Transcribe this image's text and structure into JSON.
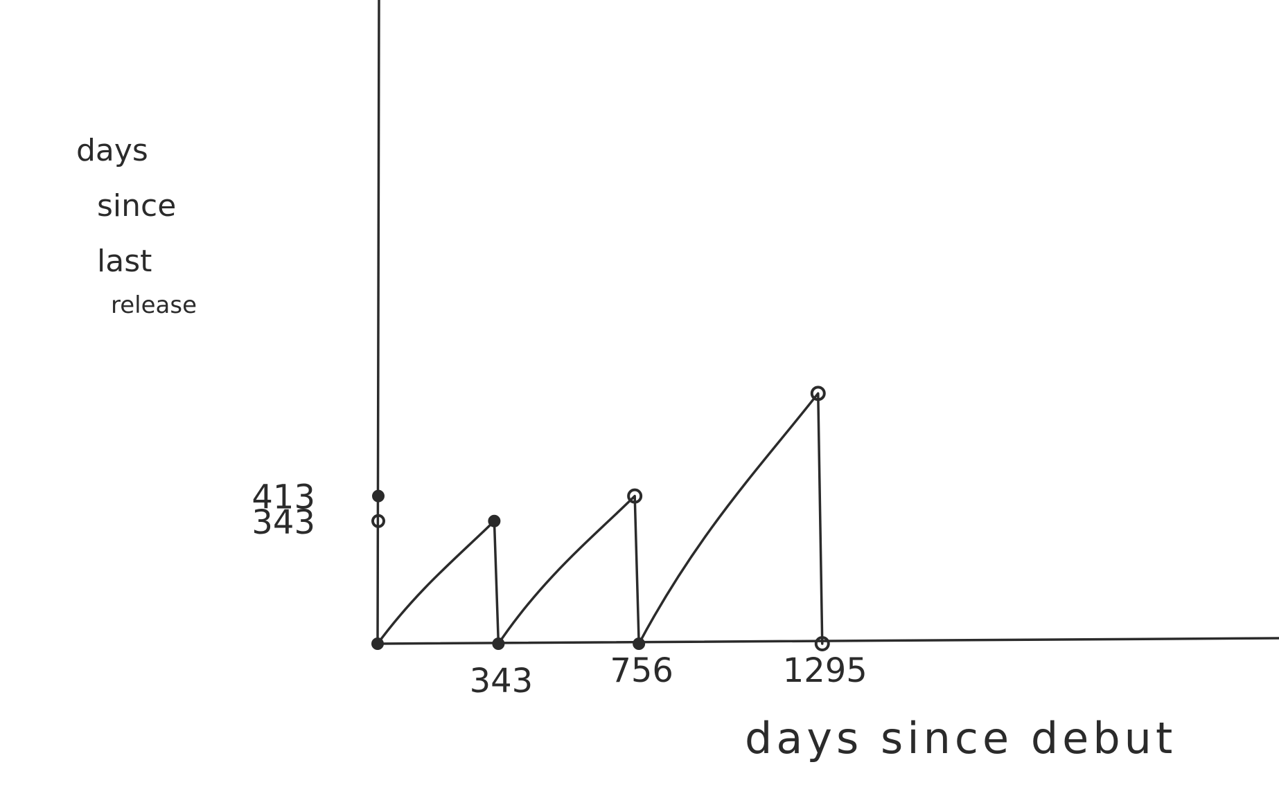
{
  "chart_data": {
    "type": "line",
    "title": "",
    "xlabel": "days since debut",
    "ylabel_lines": [
      "days",
      "since",
      "last",
      "release"
    ],
    "x_tick_labels": [
      "343",
      "756",
      "1295"
    ],
    "x_tick_values": [
      343,
      756,
      1295
    ],
    "y_tick_labels": [
      "413",
      "343"
    ],
    "y_tick_values": [
      413,
      343
    ],
    "xlim": [
      0,
      2650
    ],
    "ylim": [
      0,
      1800
    ],
    "grid": false,
    "legend": "none",
    "series": [
      {
        "points": [
          {
            "x": 0,
            "y": 0
          },
          {
            "x": 343,
            "y": 343
          },
          {
            "x": 343,
            "y": 0
          },
          {
            "x": 756,
            "y": 413
          },
          {
            "x": 756,
            "y": 0
          },
          {
            "x": 1295,
            "y": 700
          },
          {
            "x": 1295,
            "y": 0
          }
        ]
      }
    ],
    "colors": {
      "ink": "#2b2b2b",
      "background": "#ffffff"
    }
  }
}
